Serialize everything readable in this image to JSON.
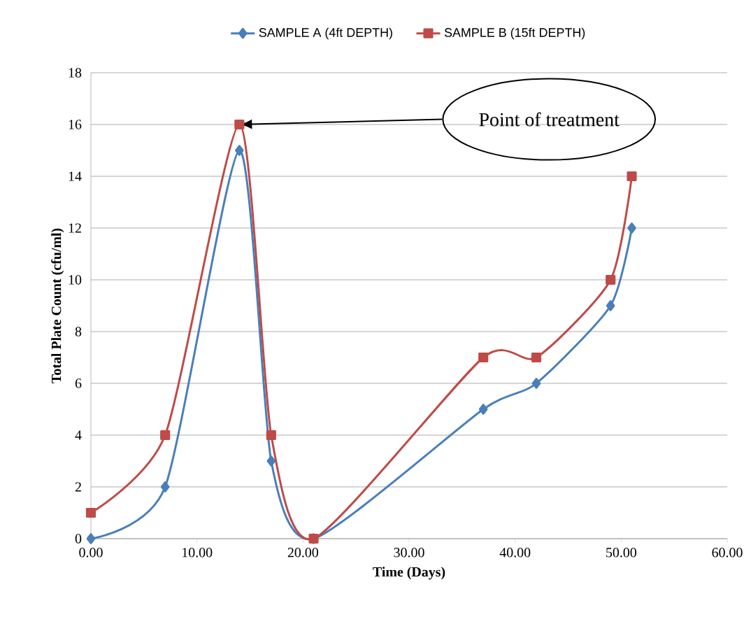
{
  "chart_data": {
    "type": "line",
    "xlabel": "Time (Days)",
    "ylabel": "Total Plate Count (cfu/ml)",
    "series": [
      {
        "name": "SAMPLE A (4ft DEPTH)",
        "color": "#4a7ebb",
        "marker": "diamond",
        "x": [
          0,
          7,
          14,
          17,
          21,
          37,
          42,
          49,
          51
        ],
        "values": [
          0,
          2,
          15,
          3,
          0,
          5,
          6,
          9,
          12
        ]
      },
      {
        "name": "SAMPLE B (15ft DEPTH)",
        "color": "#be4b48",
        "marker": "square",
        "x": [
          0,
          7,
          14,
          17,
          21,
          37,
          42,
          49,
          51
        ],
        "values": [
          1,
          4,
          16,
          4,
          0,
          7,
          7,
          10,
          14
        ]
      }
    ],
    "xlim": [
      0,
      60
    ],
    "xticks": [
      {
        "value": 0,
        "label": "0.00"
      },
      {
        "value": 10,
        "label": "10.00"
      },
      {
        "value": 20,
        "label": "20.00"
      },
      {
        "value": 30,
        "label": "30.00"
      },
      {
        "value": 40,
        "label": "40.00"
      },
      {
        "value": 50,
        "label": "50.00"
      },
      {
        "value": 60,
        "label": "60.00"
      }
    ],
    "ylim": [
      0,
      18
    ],
    "yticks": [
      0,
      2,
      4,
      6,
      8,
      10,
      12,
      14,
      16,
      18
    ],
    "grid": "y",
    "legend": "top",
    "line_style": "solid",
    "annotations": [
      "Point of treatment"
    ]
  }
}
